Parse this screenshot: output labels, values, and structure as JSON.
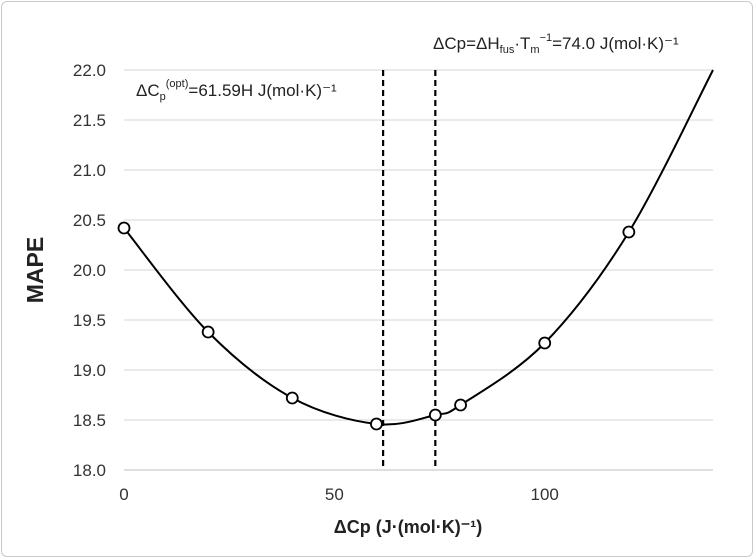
{
  "chart_data": {
    "type": "scatter",
    "xlabel": "ΔCp (J·(mol·K)⁻¹)",
    "ylabel": "MAPE",
    "xlim": [
      0,
      140
    ],
    "ylim": [
      18.0,
      22.0
    ],
    "x_ticks": [
      "0",
      "50",
      "100"
    ],
    "y_ticks": [
      "18.0",
      "18.5",
      "19.0",
      "19.5",
      "20.0",
      "20.5",
      "21.0",
      "21.5",
      "22.0"
    ],
    "grid": "horizontal",
    "series": [
      {
        "marker": "open-circle",
        "x": [
          0,
          20,
          40,
          60,
          74,
          80,
          100,
          120
        ],
        "y": [
          20.42,
          19.38,
          18.72,
          18.46,
          18.55,
          18.65,
          19.27,
          20.38
        ]
      }
    ],
    "fit_curve": {
      "style": "smooth-line",
      "x": [
        0,
        20,
        40,
        60,
        74,
        80,
        100,
        120,
        140
      ],
      "y": [
        20.42,
        19.38,
        18.72,
        18.46,
        18.55,
        18.65,
        19.27,
        20.38,
        22.0
      ]
    },
    "vlines": [
      {
        "x": 61.59,
        "style": "dashed"
      },
      {
        "x": 74.0,
        "style": "dashed"
      }
    ],
    "annotations": {
      "opt_base": "ΔC",
      "opt_sub": "p",
      "opt_sup": "(opt)",
      "opt_tail": "=61.59H J(mol·K)⁻¹",
      "fus_head": "ΔCp=ΔH",
      "fus_sub1": "fus",
      "fus_mid": "·T",
      "fus_sub2": "m",
      "fus_sup": "−1",
      "fus_tail": "=74.0 J(mol·K)⁻¹"
    }
  }
}
